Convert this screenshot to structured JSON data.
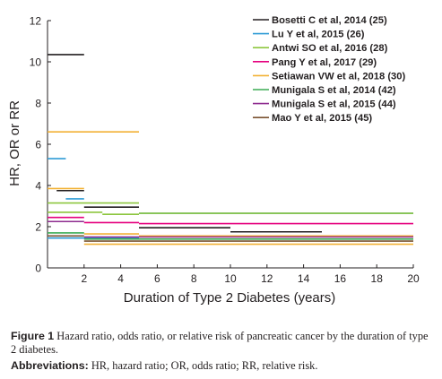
{
  "chart_data": {
    "type": "line",
    "ylabel": "HR, OR or RR",
    "xlabel": "Duration of  Type 2 Diabetes (years)",
    "ylim": [
      0,
      12
    ],
    "yticks": [
      0,
      2,
      4,
      6,
      8,
      10,
      12
    ],
    "xticks": [
      2,
      4,
      6,
      8,
      10,
      12,
      14,
      16,
      18,
      20
    ],
    "xlim": [
      0,
      20
    ],
    "legend_position": "top-right",
    "grid": false,
    "series": [
      {
        "name": "Bosetti C et al, 2014 (25)",
        "color": "#231f20",
        "segments": [
          {
            "x": [
              0,
              2
            ],
            "y": 10.35
          },
          {
            "x": [
              0.5,
              2
            ],
            "y": 3.75
          },
          {
            "x": [
              2,
              5
            ],
            "y": 2.95
          },
          {
            "x": [
              5,
              10
            ],
            "y": 1.95
          },
          {
            "x": [
              10,
              15
            ],
            "y": 1.75
          }
        ]
      },
      {
        "name": "Lu Y et al, 2015 (26)",
        "color": "#2e9bd6",
        "segments": [
          {
            "x": [
              0,
              1
            ],
            "y": 5.3
          },
          {
            "x": [
              1,
              2
            ],
            "y": 3.35
          },
          {
            "x": [
              0,
              5
            ],
            "y": 1.45
          },
          {
            "x": [
              5,
              20
            ],
            "y": 2.65
          }
        ]
      },
      {
        "name": "Antwi SO et al, 2016 (28)",
        "color": "#8dc63f",
        "segments": [
          {
            "x": [
              0,
              5
            ],
            "y": 3.15
          },
          {
            "x": [
              0,
              3
            ],
            "y": 2.7
          },
          {
            "x": [
              3,
              5
            ],
            "y": 2.6
          },
          {
            "x": [
              5,
              20
            ],
            "y": 2.65
          }
        ]
      },
      {
        "name": "Pang Y et al, 2017 (29)",
        "color": "#e5007e",
        "segments": [
          {
            "x": [
              0,
              2
            ],
            "y": 2.45
          },
          {
            "x": [
              2,
              5
            ],
            "y": 2.2
          },
          {
            "x": [
              5,
              20
            ],
            "y": 2.15
          }
        ]
      },
      {
        "name": "Setiawan VW et al, 2018 (30)",
        "color": "#f2b134",
        "segments": [
          {
            "x": [
              0,
              5
            ],
            "y": 6.6
          },
          {
            "x": [
              0,
              2
            ],
            "y": 3.85
          },
          {
            "x": [
              2,
              5
            ],
            "y": 1.65
          },
          {
            "x": [
              5,
              20
            ],
            "y": 1.55
          },
          {
            "x": [
              2,
              20
            ],
            "y": 1.15
          }
        ]
      },
      {
        "name": "Munigala S et al, 2014 (42)",
        "color": "#3bab54",
        "segments": [
          {
            "x": [
              0,
              2
            ],
            "y": 1.7
          },
          {
            "x": [
              2,
              20
            ],
            "y": 1.4
          }
        ]
      },
      {
        "name": "Munigala S et al, 2015 (44)",
        "color": "#8e2b8f",
        "segments": [
          {
            "x": [
              0,
              2
            ],
            "y": 2.25
          },
          {
            "x": [
              2,
              20
            ],
            "y": 1.5
          }
        ]
      },
      {
        "name": "Mao Y et al, 2015 (45)",
        "color": "#7a5230",
        "segments": [
          {
            "x": [
              0,
              2
            ],
            "y": 1.55
          },
          {
            "x": [
              2,
              20
            ],
            "y": 1.3
          }
        ]
      }
    ]
  },
  "caption": {
    "figure_label": "Figure 1",
    "figure_text": " Hazard ratio, odds ratio, or relative risk of pancreatic cancer by the duration of type 2 diabetes.",
    "abbrev_label": "Abbreviations:",
    "abbrev_text": " HR, hazard ratio; OR, odds ratio; RR, relative risk."
  }
}
